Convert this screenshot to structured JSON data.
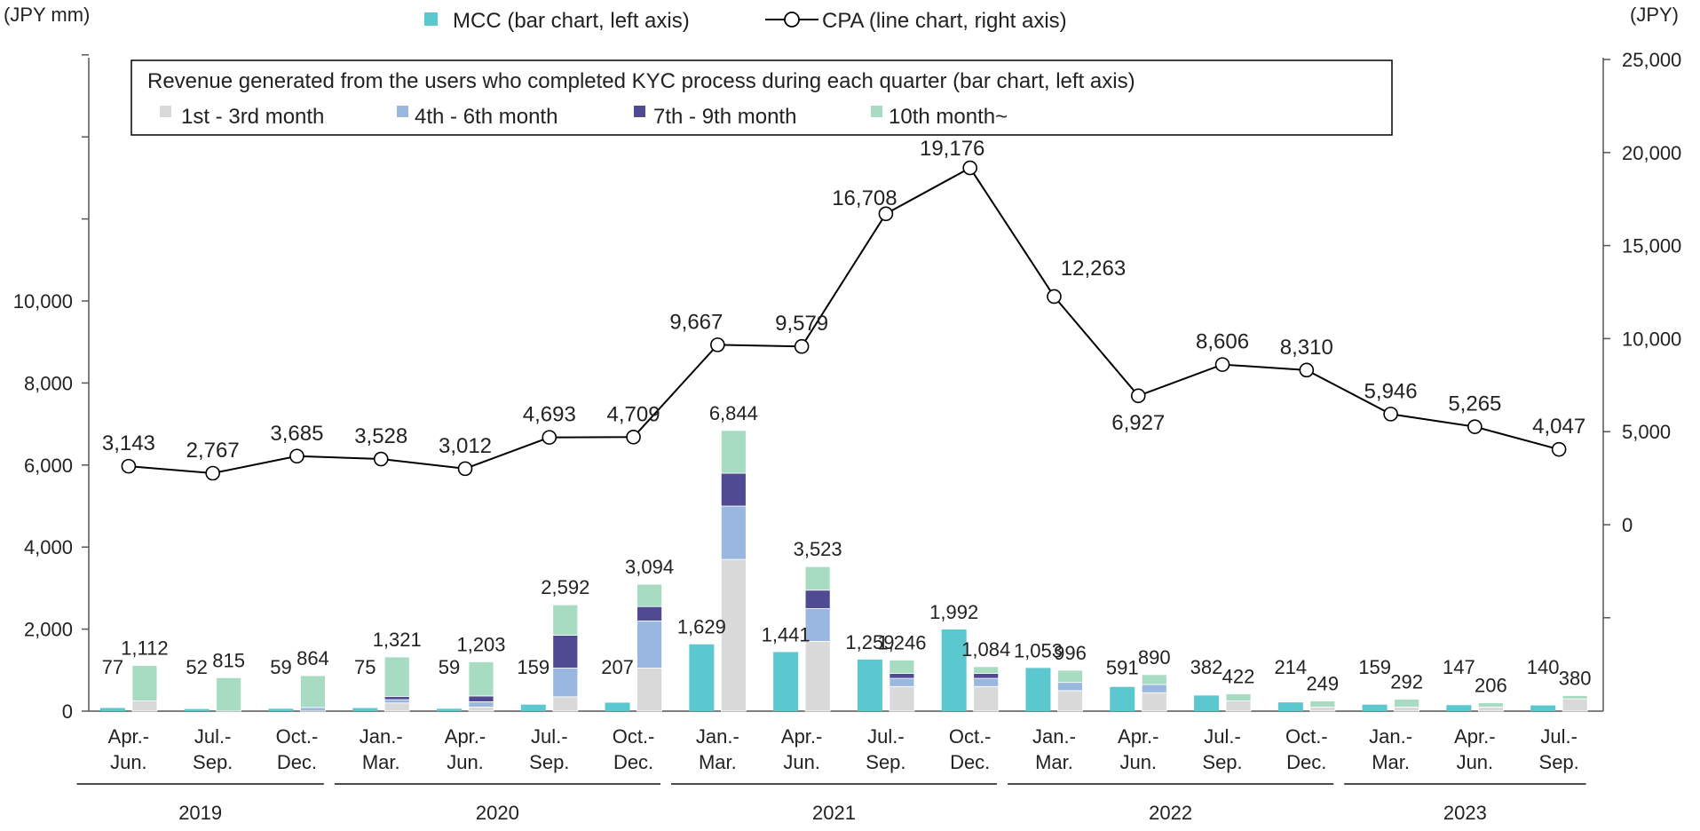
{
  "chart_data": {
    "type": "bar",
    "left_axis_label": "(JPY mm)",
    "right_axis_label": "(JPY)",
    "left_ylim": [
      0,
      16000
    ],
    "left_ticks": [
      "0",
      "2,000",
      "4,000",
      "6,000",
      "8,000",
      "10,000"
    ],
    "left_tick_values": [
      0,
      2000,
      4000,
      6000,
      8000,
      10000
    ],
    "right_ylim": [
      -10000,
      25000
    ],
    "right_ticks": [
      "0",
      "5,000",
      "10,000",
      "15,000",
      "20,000",
      "25,000"
    ],
    "right_tick_values": [
      0,
      5000,
      10000,
      15000,
      20000,
      25000
    ],
    "top_legend": {
      "mcc": "MCC (bar chart, left axis)",
      "cpa": "CPA (line chart, right axis)"
    },
    "box_legend": {
      "title": "Revenue generated from the users who completed KYC process during each quarter (bar chart, left axis)",
      "items": [
        "1st - 3rd month",
        "4th - 6th month",
        "7th - 9th month",
        "10th month~"
      ]
    },
    "colors": {
      "mcc": "#5bc8cf",
      "m1_3": "#d9d9d9",
      "m4_6": "#9ab7e0",
      "m7_9": "#4f4a92",
      "m10": "#a7dcc3",
      "line": "#000000"
    },
    "quarters": [
      {
        "l1": "Apr.-",
        "l2": "Jun."
      },
      {
        "l1": "Jul.-",
        "l2": "Sep."
      },
      {
        "l1": "Oct.-",
        "l2": "Dec."
      },
      {
        "l1": "Jan.-",
        "l2": "Mar."
      },
      {
        "l1": "Apr.-",
        "l2": "Jun."
      },
      {
        "l1": "Jul.-",
        "l2": "Sep."
      },
      {
        "l1": "Oct.-",
        "l2": "Dec."
      },
      {
        "l1": "Jan.-",
        "l2": "Mar."
      },
      {
        "l1": "Apr.-",
        "l2": "Jun."
      },
      {
        "l1": "Jul.-",
        "l2": "Sep."
      },
      {
        "l1": "Oct.-",
        "l2": "Dec."
      },
      {
        "l1": "Jan.-",
        "l2": "Mar."
      },
      {
        "l1": "Apr.-",
        "l2": "Jun."
      },
      {
        "l1": "Jul.-",
        "l2": "Sep."
      },
      {
        "l1": "Oct.-",
        "l2": "Dec."
      },
      {
        "l1": "Jan.-",
        "l2": "Mar."
      },
      {
        "l1": "Apr.-",
        "l2": "Jun."
      },
      {
        "l1": "Jul.-",
        "l2": "Sep."
      }
    ],
    "years": [
      {
        "label": "2019",
        "start": 0,
        "end": 2
      },
      {
        "label": "2020",
        "start": 3,
        "end": 6
      },
      {
        "label": "2021",
        "start": 7,
        "end": 10
      },
      {
        "label": "2022",
        "start": 11,
        "end": 14
      },
      {
        "label": "2023",
        "start": 15,
        "end": 17
      }
    ],
    "mcc": [
      77,
      52,
      59,
      75,
      59,
      159,
      207,
      1629,
      1441,
      1259,
      1992,
      1053,
      591,
      382,
      214,
      159,
      147,
      140
    ],
    "mcc_labels": [
      "77",
      "52",
      "59",
      "75",
      "59",
      "159",
      "207",
      "1,629",
      "1,441",
      "1,259",
      "1,992",
      "1,053",
      "591",
      "382",
      "214",
      "159",
      "147",
      "140"
    ],
    "revenue_total": [
      1112,
      815,
      864,
      1321,
      1203,
      2592,
      3094,
      6844,
      3523,
      1246,
      1084,
      996,
      890,
      422,
      249,
      292,
      206,
      380
    ],
    "revenue_labels": [
      "1,112",
      "815",
      "864",
      "1,321",
      "1,203",
      "2,592",
      "3,094",
      "6,844",
      "3,523",
      "1,246",
      "1,084",
      "996",
      "890",
      "422",
      "249",
      "292",
      "206",
      "380"
    ],
    "revenue_segments": [
      [
        250,
        0,
        0,
        862
      ],
      [
        0,
        0,
        0,
        815
      ],
      [
        0,
        90,
        0,
        774
      ],
      [
        200,
        80,
        80,
        961
      ],
      [
        100,
        130,
        140,
        833
      ],
      [
        350,
        700,
        800,
        742
      ],
      [
        1050,
        1150,
        350,
        544
      ],
      [
        3700,
        1300,
        800,
        1044
      ],
      [
        1700,
        800,
        450,
        573
      ],
      [
        600,
        200,
        120,
        326
      ],
      [
        600,
        200,
        120,
        164
      ],
      [
        500,
        200,
        0,
        296
      ],
      [
        450,
        200,
        0,
        240
      ],
      [
        250,
        0,
        0,
        172
      ],
      [
        100,
        0,
        0,
        149
      ],
      [
        100,
        0,
        0,
        192
      ],
      [
        100,
        0,
        0,
        106
      ],
      [
        300,
        0,
        0,
        80
      ]
    ],
    "cpa": [
      3143,
      2767,
      3685,
      3528,
      3012,
      4693,
      4709,
      9667,
      9579,
      16708,
      19176,
      12263,
      6927,
      8606,
      8310,
      5946,
      5265,
      4047
    ],
    "cpa_labels": [
      "3,143",
      "2,767",
      "3,685",
      "3,528",
      "3,012",
      "4,693",
      "4,709",
      "9,667",
      "9,579",
      "16,708",
      "19,176",
      "12,263",
      "6,927",
      "8,606",
      "8,310",
      "5,946",
      "5,265",
      "4,047"
    ]
  }
}
